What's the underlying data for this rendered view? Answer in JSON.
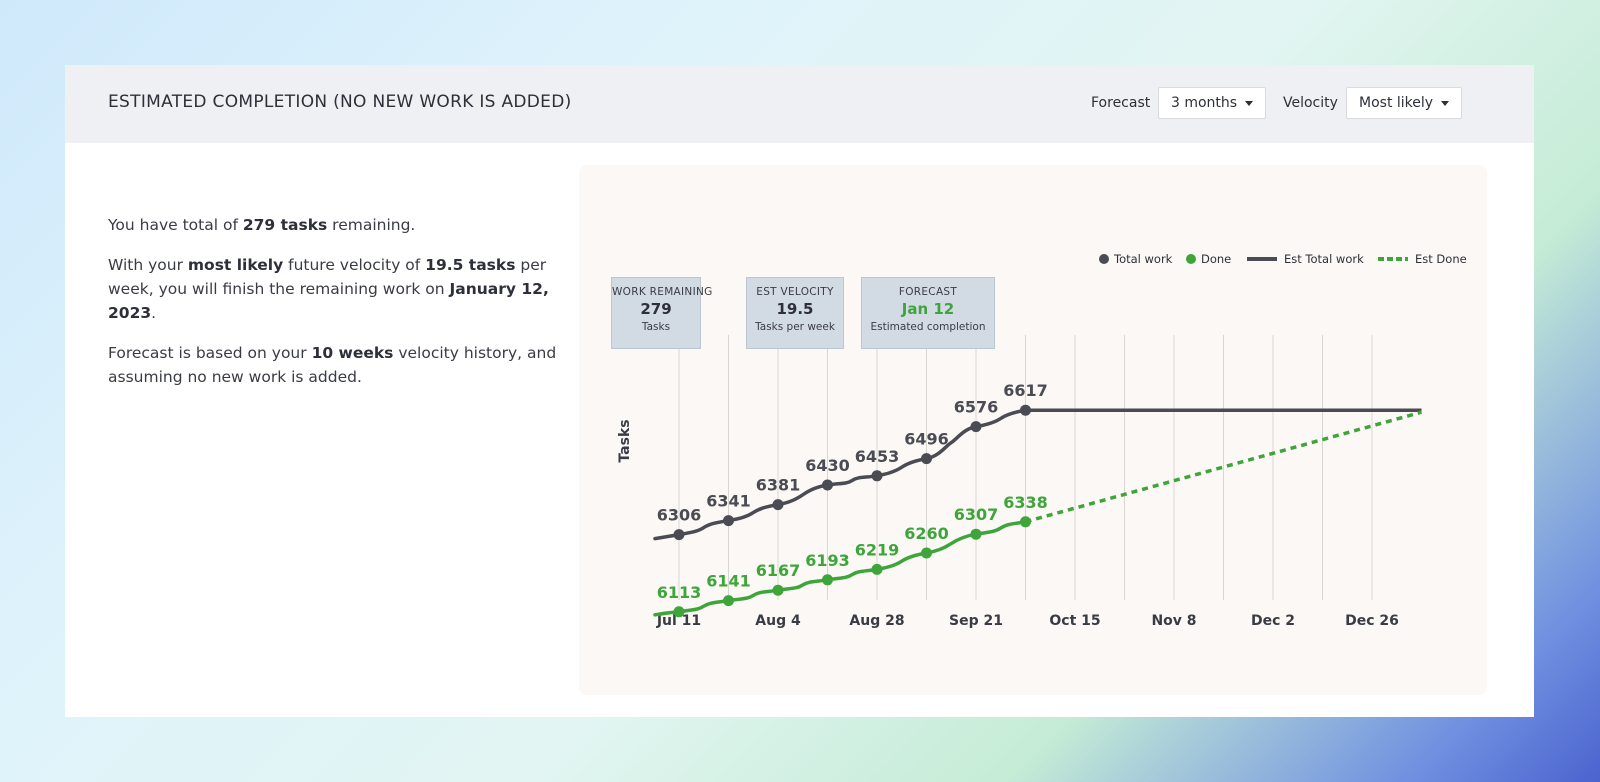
{
  "header": {
    "title": "ESTIMATED COMPLETION (NO NEW WORK IS ADDED)",
    "forecast_label": "Forecast",
    "forecast_value": "3 months",
    "velocity_label": "Velocity",
    "velocity_value": "Most likely"
  },
  "summary": {
    "line1_pre": "You have total of ",
    "line1_bold": "279 tasks",
    "line1_post": " remaining.",
    "line2_pre": "With your ",
    "line2_bold1": "most likely",
    "line2_mid1": " future velocity of ",
    "line2_bold2": "19.5 tasks",
    "line2_mid2": " per week, you will finish the remaining work on ",
    "line2_bold3": "January 12, 2023",
    "line2_post": ".",
    "line3_pre": "Forecast is based on your ",
    "line3_bold": "10 weeks",
    "line3_post": " velocity history, and assuming no new work is added."
  },
  "kpis": [
    {
      "label": "WORK REMAINING",
      "value": "279",
      "sub": "Tasks"
    },
    {
      "label": "EST VELOCITY",
      "value": "19.5",
      "sub": "Tasks per week"
    },
    {
      "label": "FORECAST",
      "value": "Jan 12",
      "sub": "Estimated completion"
    }
  ],
  "colors": {
    "total": "#4a4b53",
    "done": "#3da53a",
    "grid": "#d9d6d2"
  },
  "chart_data": {
    "type": "line",
    "title": "",
    "xlabel": "",
    "ylabel": "Tasks",
    "x_ticks": [
      "Jul 11",
      "Aug 4",
      "Aug 28",
      "Sep 21",
      "Oct 15",
      "Nov 8",
      "Dec 2",
      "Dec 26"
    ],
    "x": [
      "Jul 11",
      "Jul 23",
      "Aug 4",
      "Aug 16",
      "Aug 28",
      "Sep 9",
      "Sep 21",
      "Oct 3"
    ],
    "y_range": [
      6040,
      6680
    ],
    "series": [
      {
        "name": "Total work",
        "values": [
          6306,
          6341,
          6381,
          6430,
          6453,
          6496,
          6576,
          6617
        ]
      },
      {
        "name": "Done",
        "values": [
          6113,
          6141,
          6167,
          6193,
          6219,
          6260,
          6307,
          6338
        ]
      },
      {
        "name": "Est Total work",
        "x": [
          "Oct 3",
          "Jan 7"
        ],
        "values": [
          6617,
          6617
        ]
      },
      {
        "name": "Est Done",
        "x": [
          "Oct 3",
          "Jan 7"
        ],
        "values": [
          6338,
          6612
        ]
      }
    ],
    "legend": [
      "Total work",
      "Done",
      "Est Total work",
      "Est Done"
    ],
    "legend_position": "top-right",
    "grid": "vertical"
  }
}
